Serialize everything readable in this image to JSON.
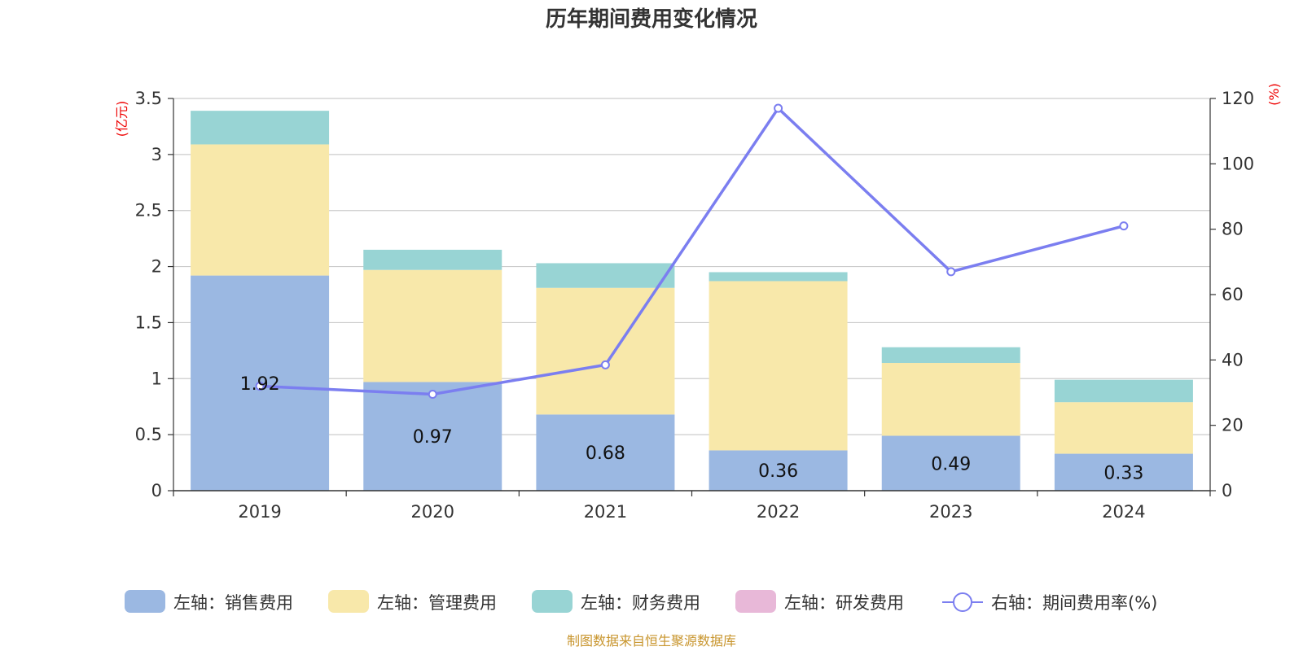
{
  "title": "历年期间费用变化情况",
  "source": "制图数据来自恒生聚源数据库",
  "chart_data": {
    "type": "bar",
    "stacked": true,
    "categories": [
      "2019",
      "2020",
      "2021",
      "2022",
      "2023",
      "2024"
    ],
    "left_axis": {
      "unit": "(亿元)",
      "ylim": [
        0,
        3.5
      ],
      "ticks": [
        "0",
        "0.5",
        "1",
        "1.5",
        "2",
        "2.5",
        "3",
        "3.5"
      ]
    },
    "right_axis": {
      "unit": "(%)",
      "ylim": [
        0,
        120
      ],
      "ticks": [
        "0",
        "20",
        "40",
        "60",
        "80",
        "100",
        "120"
      ]
    },
    "grid": true,
    "legend_position": "bottom",
    "series": [
      {
        "name": "左轴：销售费用",
        "type": "bar",
        "axis": "left",
        "color": "#9bb8e2",
        "values": [
          1.92,
          0.97,
          0.68,
          0.36,
          0.49,
          0.33
        ],
        "labels": [
          "1.92",
          "0.97",
          "0.68",
          "0.36",
          "0.49",
          "0.33"
        ]
      },
      {
        "name": "左轴：管理费用",
        "type": "bar",
        "axis": "left",
        "color": "#f8e8aa",
        "values": [
          1.17,
          1.0,
          1.13,
          1.51,
          0.65,
          0.46
        ]
      },
      {
        "name": "左轴：财务费用",
        "type": "bar",
        "axis": "left",
        "color": "#98d4d4",
        "values": [
          0.3,
          0.18,
          0.22,
          0.08,
          0.14,
          0.2
        ]
      },
      {
        "name": "左轴：研发费用",
        "type": "bar",
        "axis": "left",
        "color": "#e8b8d8",
        "values": [
          0,
          0,
          0,
          0,
          0,
          0
        ]
      },
      {
        "name": "右轴：期间费用率(%)",
        "type": "line",
        "axis": "right",
        "color": "#7b7ef0",
        "values": [
          32,
          29.5,
          38.5,
          117,
          67,
          81
        ]
      }
    ]
  }
}
